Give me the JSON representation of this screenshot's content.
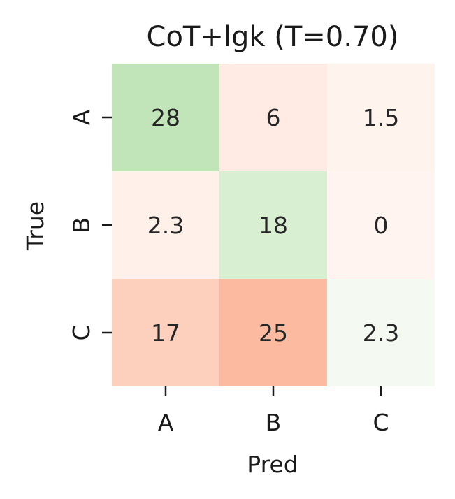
{
  "chart_data": {
    "type": "heatmap",
    "title": "CoT+lgk (T=0.70)",
    "xlabel": "Pred",
    "ylabel": "True",
    "x_categories": [
      "A",
      "B",
      "C"
    ],
    "y_categories": [
      "A",
      "B",
      "C"
    ],
    "values": [
      [
        28,
        6,
        1.5
      ],
      [
        2.3,
        18,
        0
      ],
      [
        17,
        25,
        2.3
      ]
    ],
    "value_labels": [
      [
        "28",
        "6",
        "1.5"
      ],
      [
        "2.3",
        "18",
        "0"
      ],
      [
        "17",
        "25",
        "2.3"
      ]
    ],
    "colors": [
      [
        "#c1e4b9",
        "#ffebe3",
        "#fff3ee"
      ],
      [
        "#fff1e9",
        "#d8efd2",
        "#fff4ef"
      ],
      [
        "#fdd0bd",
        "#fcbba1",
        "#f4faf2"
      ]
    ],
    "grid": false,
    "colorbar": false
  }
}
